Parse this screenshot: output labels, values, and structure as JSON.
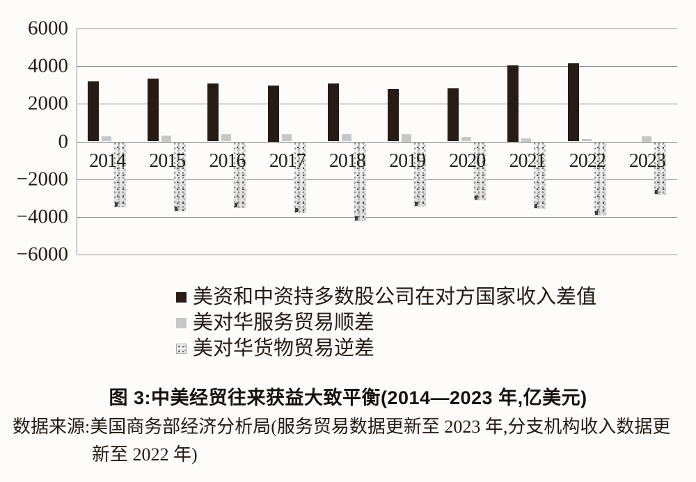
{
  "figure": {
    "caption": "图 3:中美经贸往来获益大致平衡(2014—2023 年,亿美元)",
    "source_line1": "数据来源:美国商务部经济分析局(服务贸易数据更新至 2023 年,分支机构收入数据更",
    "source_line2": "新至 2022 年)"
  },
  "legend": {
    "items": [
      {
        "label": "美资和中资持多数股公司在对方国家收入差值",
        "swatch": "solid-dark-square"
      },
      {
        "label": "美对华服务贸易顺差",
        "swatch": "light-gray-square"
      },
      {
        "label": "美对华货物贸易逆差",
        "swatch": "speckled-square"
      }
    ]
  },
  "axis": {
    "y_tick_labels": [
      "6000",
      "4000",
      "2000",
      "0",
      "−2000",
      "−4000",
      "−6000"
    ]
  },
  "colors": {
    "bar_dark": "#271b15",
    "bar_gray": "#c7c7c7",
    "bar_speckle_base": "#ebebeb",
    "gridline": "#8c8c8c",
    "background": "#fdfcfa"
  },
  "chart_data": {
    "type": "bar",
    "categories": [
      "2014",
      "2015",
      "2016",
      "2017",
      "2018",
      "2019",
      "2020",
      "2021",
      "2022",
      "2023"
    ],
    "series": [
      {
        "name": "美资和中资持多数股公司在对方国家收入差值",
        "style": "solid-dark",
        "values": [
          3200,
          3340,
          3100,
          2970,
          3100,
          2800,
          2830,
          4050,
          4150,
          null
        ]
      },
      {
        "name": "美对华服务贸易顺差",
        "style": "light-gray",
        "values": [
          260,
          300,
          370,
          385,
          400,
          390,
          250,
          180,
          130,
          270
        ]
      },
      {
        "name": "美对华货物贸易逆差",
        "style": "speckled",
        "values": [
          -3440,
          -3670,
          -3480,
          -3750,
          -4180,
          -3420,
          -3080,
          -3540,
          -3900,
          -2790
        ]
      }
    ],
    "title": "图 3:中美经贸往来获益大致平衡(2014—2023 年,亿美元)",
    "xlabel": "",
    "ylabel": "",
    "unit": "亿美元",
    "ylim": [
      -6000,
      6000
    ],
    "ytick_interval": 2000,
    "grid": "horizontal",
    "legend_position": "below"
  }
}
